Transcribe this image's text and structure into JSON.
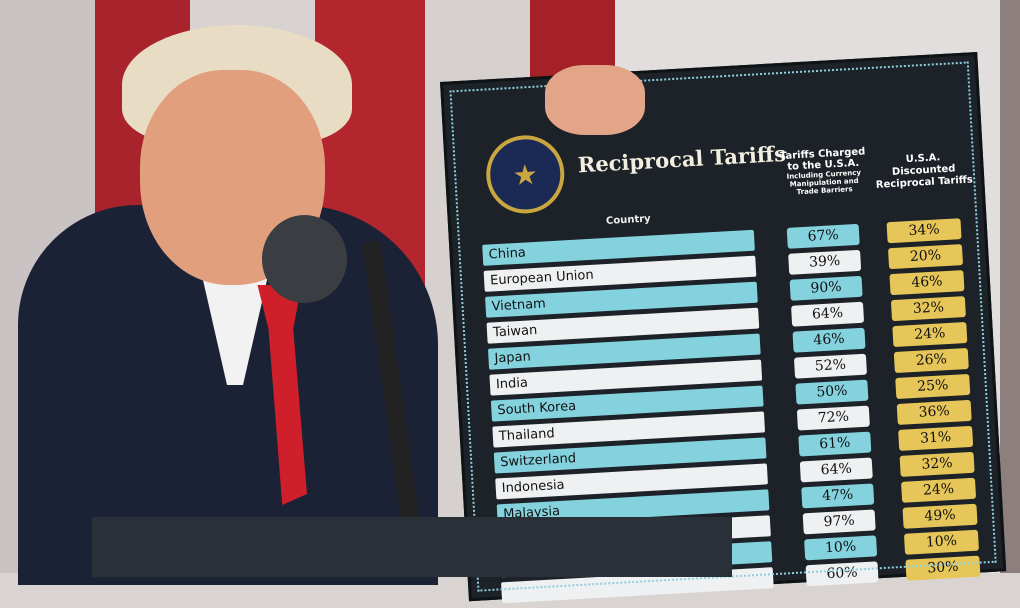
{
  "board": {
    "title": "Reciprocal Tariffs",
    "seal_text": "SEAL OF THE PRESIDENT OF THE UNITED STATES",
    "column_country": "Country",
    "column_charged": "Tariffs Charged to the U.S.A.",
    "column_charged_note": "Including Currency Manipulation and Trade Barriers",
    "column_discounted": "U.S.A. Discounted Reciprocal Tariffs",
    "colors": {
      "teal": "#84d2de",
      "white": "#eef0f2",
      "gold": "#e7c659",
      "board": "#1c2227"
    },
    "rows": [
      {
        "country": "China",
        "charged": "67%",
        "discounted": "34%"
      },
      {
        "country": "European Union",
        "charged": "39%",
        "discounted": "20%"
      },
      {
        "country": "Vietnam",
        "charged": "90%",
        "discounted": "46%"
      },
      {
        "country": "Taiwan",
        "charged": "64%",
        "discounted": "32%"
      },
      {
        "country": "Japan",
        "charged": "46%",
        "discounted": "24%"
      },
      {
        "country": "India",
        "charged": "52%",
        "discounted": "26%"
      },
      {
        "country": "South Korea",
        "charged": "50%",
        "discounted": "25%"
      },
      {
        "country": "Thailand",
        "charged": "72%",
        "discounted": "36%"
      },
      {
        "country": "Switzerland",
        "charged": "61%",
        "discounted": "31%"
      },
      {
        "country": "Indonesia",
        "charged": "64%",
        "discounted": "32%"
      },
      {
        "country": "Malaysia",
        "charged": "47%",
        "discounted": "24%"
      },
      {
        "country": "",
        "charged": "97%",
        "discounted": "49%"
      },
      {
        "country": "",
        "charged": "10%",
        "discounted": "10%"
      },
      {
        "country": "",
        "charged": "60%",
        "discounted": "30%"
      }
    ]
  }
}
